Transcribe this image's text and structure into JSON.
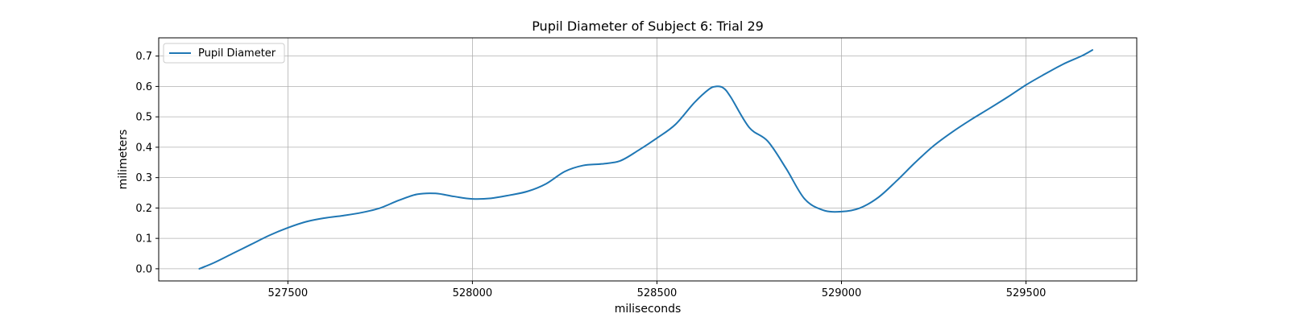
{
  "chart_data": {
    "type": "line",
    "title": "Pupil Diameter of Subject 6: Trial 29",
    "xlabel": "miliseconds",
    "ylabel": "milimeters",
    "xlim": [
      527150,
      529800
    ],
    "ylim": [
      -0.04,
      0.76
    ],
    "xticks": [
      527500,
      528000,
      528500,
      529000,
      529500
    ],
    "xtick_labels": [
      "527500",
      "528000",
      "528500",
      "529000",
      "529500"
    ],
    "yticks": [
      0.0,
      0.1,
      0.2,
      0.3,
      0.4,
      0.5,
      0.6,
      0.7
    ],
    "ytick_labels": [
      "0.0",
      "0.1",
      "0.2",
      "0.3",
      "0.4",
      "0.5",
      "0.6",
      "0.7"
    ],
    "grid": true,
    "legend_position": "top-left",
    "series": [
      {
        "name": "Pupil Diameter",
        "color": "#1f77b4",
        "x": [
          527260,
          527300,
          527350,
          527400,
          527450,
          527500,
          527550,
          527600,
          527650,
          527700,
          527750,
          527800,
          527850,
          527900,
          527950,
          528000,
          528050,
          528100,
          528150,
          528200,
          528250,
          528300,
          528350,
          528400,
          528450,
          528500,
          528550,
          528600,
          528640,
          528660,
          528680,
          528700,
          528750,
          528800,
          528850,
          528900,
          528950,
          529000,
          529050,
          529100,
          529150,
          529200,
          529250,
          529300,
          529350,
          529400,
          529450,
          529500,
          529550,
          529600,
          529650,
          529680
        ],
        "y": [
          0.0,
          0.02,
          0.05,
          0.08,
          0.11,
          0.135,
          0.155,
          0.167,
          0.175,
          0.185,
          0.2,
          0.225,
          0.245,
          0.248,
          0.238,
          0.23,
          0.232,
          0.242,
          0.255,
          0.28,
          0.32,
          0.34,
          0.345,
          0.355,
          0.39,
          0.43,
          0.475,
          0.545,
          0.59,
          0.6,
          0.595,
          0.565,
          0.465,
          0.42,
          0.33,
          0.23,
          0.193,
          0.188,
          0.2,
          0.235,
          0.29,
          0.35,
          0.405,
          0.45,
          0.49,
          0.527,
          0.565,
          0.605,
          0.64,
          0.673,
          0.7,
          0.72
        ]
      }
    ]
  }
}
